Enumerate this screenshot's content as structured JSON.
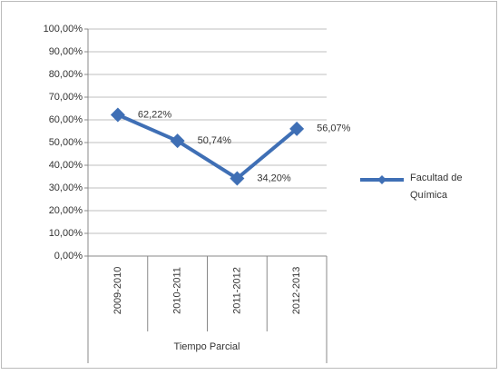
{
  "chart_data": {
    "type": "line",
    "categories": [
      "2009-2010",
      "2010-2011",
      "2011-2012",
      "2012-2013"
    ],
    "x_label": "Tiempo Parcial",
    "series": [
      {
        "name": "Facultad de Química",
        "color": "#3f6fb5",
        "values": [
          62.22,
          50.74,
          34.2,
          56.07
        ],
        "value_labels": [
          "62,22%",
          "50,74%",
          "34,20%",
          "56,07%"
        ]
      }
    ],
    "ylim": [
      0,
      100
    ],
    "yticks": [
      {
        "value": 0,
        "label": "0,00%"
      },
      {
        "value": 10,
        "label": "10,00%"
      },
      {
        "value": 20,
        "label": "20,00%"
      },
      {
        "value": 30,
        "label": "30,00%"
      },
      {
        "value": 40,
        "label": "40,00%"
      },
      {
        "value": 50,
        "label": "50,00%"
      },
      {
        "value": 60,
        "label": "60,00%"
      },
      {
        "value": 70,
        "label": "70,00%"
      },
      {
        "value": 80,
        "label": "80,00%"
      },
      {
        "value": 90,
        "label": "90,00%"
      },
      {
        "value": 100,
        "label": "100,00%"
      }
    ],
    "grid": true,
    "legend": "right"
  }
}
